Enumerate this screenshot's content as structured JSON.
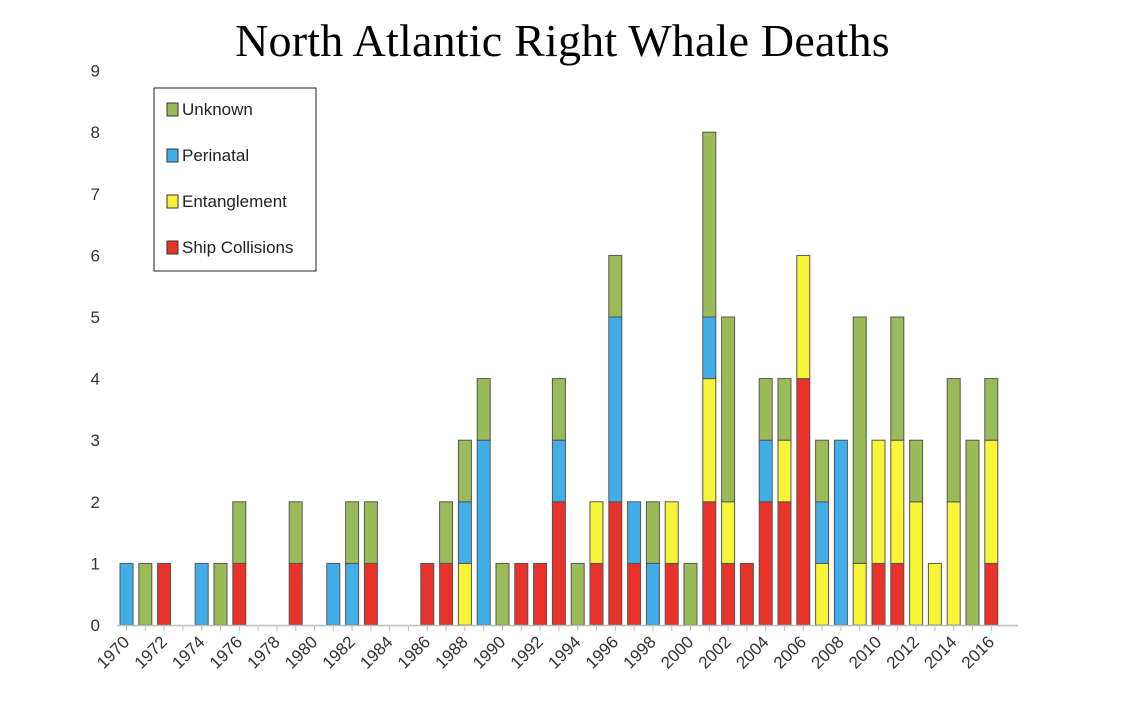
{
  "chart_data": {
    "type": "bar",
    "stacked": true,
    "title": "North Atlantic Right Whale Deaths",
    "xlabel": "",
    "ylabel": "",
    "ylim": [
      0,
      9
    ],
    "yticks": [
      0,
      1,
      2,
      3,
      4,
      5,
      6,
      7,
      8,
      9
    ],
    "grid": false,
    "legend_position": "top-left",
    "categories": [
      1970,
      1971,
      1972,
      1973,
      1974,
      1975,
      1976,
      1977,
      1978,
      1979,
      1980,
      1981,
      1982,
      1983,
      1984,
      1985,
      1986,
      1987,
      1988,
      1989,
      1990,
      1991,
      1992,
      1993,
      1994,
      1995,
      1996,
      1997,
      1998,
      1999,
      2000,
      2001,
      2002,
      2003,
      2004,
      2005,
      2006,
      2007,
      2008,
      2009,
      2010,
      2011,
      2012,
      2013,
      2014,
      2015,
      2016
    ],
    "x_tick_labels": [
      "1970",
      "1972",
      "1974",
      "1976",
      "1978",
      "1980",
      "1982",
      "1984",
      "1986",
      "1988",
      "1990",
      "1992",
      "1994",
      "1996",
      "1998",
      "2000",
      "2002",
      "2004",
      "2006",
      "2008",
      "2010",
      "2012",
      "2014",
      "2016"
    ],
    "series": [
      {
        "name": "Ship Collisions",
        "color": "#e8322a",
        "values": [
          0,
          0,
          1,
          0,
          0,
          0,
          1,
          0,
          0,
          1,
          0,
          0,
          0,
          1,
          0,
          0,
          1,
          1,
          0,
          0,
          0,
          1,
          1,
          2,
          0,
          1,
          2,
          1,
          0,
          1,
          0,
          2,
          1,
          1,
          2,
          2,
          4,
          0,
          0,
          0,
          1,
          1,
          0,
          0,
          0,
          0,
          1
        ]
      },
      {
        "name": "Entanglement",
        "color": "#f8f536",
        "values": [
          0,
          0,
          0,
          0,
          0,
          0,
          0,
          0,
          0,
          0,
          0,
          0,
          0,
          0,
          0,
          0,
          0,
          0,
          1,
          0,
          0,
          0,
          0,
          0,
          0,
          1,
          0,
          0,
          0,
          1,
          0,
          2,
          1,
          0,
          0,
          1,
          2,
          1,
          0,
          1,
          2,
          2,
          2,
          1,
          2,
          0,
          2
        ]
      },
      {
        "name": "Perinatal",
        "color": "#41aee8",
        "values": [
          1,
          0,
          0,
          0,
          1,
          0,
          0,
          0,
          0,
          0,
          0,
          1,
          1,
          0,
          0,
          0,
          0,
          0,
          1,
          3,
          0,
          0,
          0,
          1,
          0,
          0,
          3,
          1,
          1,
          0,
          0,
          1,
          0,
          0,
          1,
          0,
          0,
          1,
          3,
          0,
          0,
          0,
          0,
          0,
          0,
          0,
          0
        ]
      },
      {
        "name": "Unknown",
        "color": "#9bbb59",
        "values": [
          0,
          1,
          0,
          0,
          0,
          1,
          1,
          0,
          0,
          1,
          0,
          0,
          1,
          1,
          0,
          0,
          0,
          1,
          1,
          1,
          1,
          0,
          0,
          1,
          1,
          0,
          1,
          0,
          1,
          0,
          1,
          3,
          3,
          0,
          1,
          1,
          0,
          1,
          0,
          4,
          0,
          2,
          1,
          0,
          2,
          3,
          1
        ]
      }
    ],
    "legend_order": [
      "Unknown",
      "Perinatal",
      "Entanglement",
      "Ship Collisions"
    ]
  }
}
